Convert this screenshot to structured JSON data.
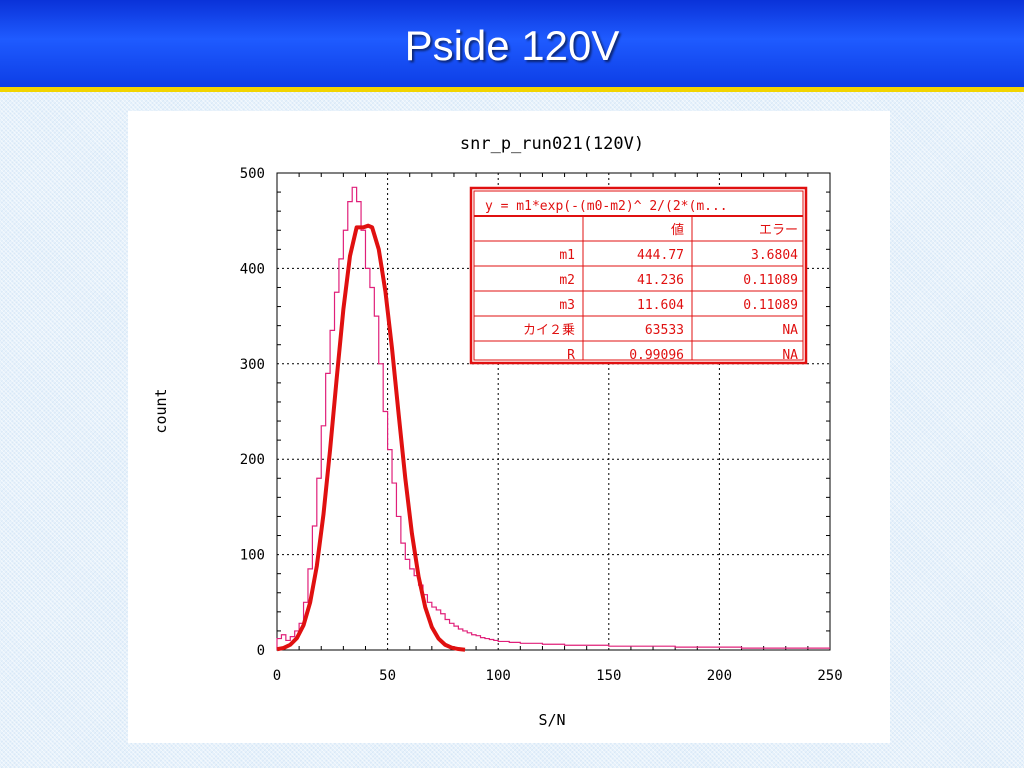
{
  "slide": {
    "title": "Pside 120V"
  },
  "colors": {
    "histogram": "#e0207a",
    "fit": "#e01010",
    "table_border": "#e01010",
    "title_bar": "#1846f0",
    "title_underline": "#f2d400"
  },
  "chart_data": {
    "type": "line",
    "title": "snr_p_run021(120V)",
    "xlabel": "S/N",
    "ylabel": "count",
    "xlim": [
      0,
      250
    ],
    "ylim": [
      0,
      500
    ],
    "xticks": [
      "0",
      "50",
      "100",
      "150",
      "200",
      "250"
    ],
    "yticks": [
      "0",
      "100",
      "200",
      "300",
      "400",
      "500"
    ],
    "grid": true,
    "series": [
      {
        "type": "step",
        "x": [
          0,
          2,
          4,
          6,
          8,
          10,
          12,
          14,
          16,
          18,
          20,
          22,
          24,
          26,
          28,
          30,
          32,
          34,
          36,
          38,
          40,
          42,
          44,
          46,
          48,
          50,
          52,
          54,
          56,
          58,
          60,
          62,
          64,
          66,
          68,
          70,
          72,
          74,
          76,
          78,
          80,
          82,
          84,
          86,
          88,
          90,
          92,
          94,
          96,
          98,
          100,
          105,
          110,
          115,
          120,
          125,
          130,
          140,
          150,
          160,
          170,
          180,
          190,
          200,
          210,
          220,
          230,
          240,
          250
        ],
        "values": [
          12,
          16,
          10,
          14,
          20,
          28,
          50,
          85,
          130,
          180,
          235,
          290,
          335,
          375,
          410,
          440,
          470,
          485,
          470,
          440,
          400,
          380,
          350,
          300,
          250,
          210,
          175,
          140,
          112,
          95,
          85,
          78,
          68,
          58,
          50,
          45,
          42,
          38,
          32,
          28,
          25,
          22,
          20,
          18,
          16,
          15,
          13,
          12,
          11,
          10,
          9,
          8,
          7,
          7,
          6,
          6,
          5,
          5,
          4,
          4,
          4,
          3,
          3,
          3,
          2,
          2,
          2,
          2,
          2
        ]
      },
      {
        "type": "fit",
        "x": [
          0,
          3,
          6,
          9,
          12,
          15,
          18,
          21,
          24,
          27,
          30,
          33,
          36,
          39,
          41.236,
          43,
          46,
          49,
          52,
          55,
          58,
          61,
          64,
          67,
          70,
          73,
          76,
          79,
          82,
          85
        ],
        "values": [
          0.8,
          2.2,
          5.5,
          12.5,
          26,
          50,
          88,
          142,
          210,
          285,
          357,
          413,
          443,
          443,
          444.77,
          443,
          420,
          376,
          316,
          247,
          180,
          122,
          77,
          45,
          24,
          12,
          5.5,
          2.4,
          1.0,
          0.3
        ]
      }
    ],
    "fit_table": {
      "formula": "y = m1*exp(-(m0-m2)^ 2/(2*(m...",
      "headers": [
        "",
        "値",
        "エラー"
      ],
      "rows": [
        [
          "m1",
          "444.77",
          "3.6804"
        ],
        [
          "m2",
          "41.236",
          "0.11089"
        ],
        [
          "m3",
          "11.604",
          "0.11089"
        ],
        [
          "カイ２乗",
          "63533",
          "NA"
        ],
        [
          "R",
          "0.99096",
          "NA"
        ]
      ]
    }
  }
}
